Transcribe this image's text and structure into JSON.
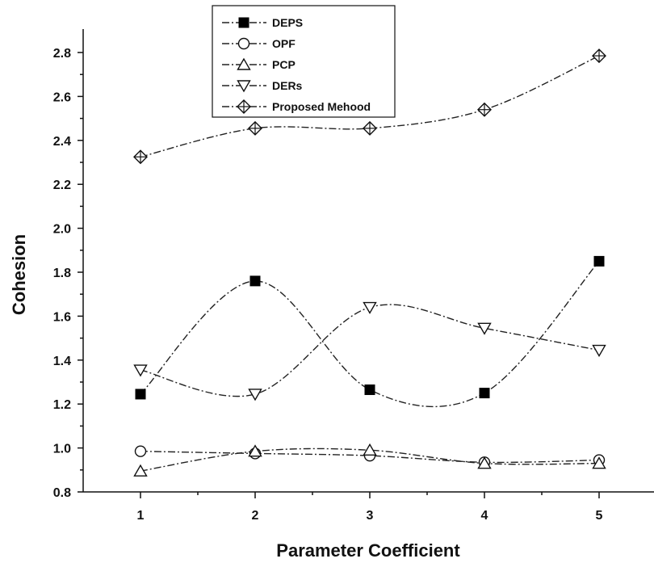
{
  "chart_data": {
    "type": "line",
    "title": "",
    "xlabel": "Parameter Coefficient",
    "ylabel": "Cohesion",
    "x": [
      1,
      2,
      3,
      4,
      5
    ],
    "xlim": [
      0.5,
      5.5
    ],
    "ylim": [
      0.8,
      2.9
    ],
    "x_ticks": [
      "1",
      "2",
      "3",
      "4",
      "5"
    ],
    "y_ticks": [
      "0.8",
      "1.0",
      "1.2",
      "1.4",
      "1.6",
      "1.8",
      "2.0",
      "2.2",
      "2.4",
      "2.6",
      "2.8"
    ],
    "grid": false,
    "legend_position": "top-center",
    "series": [
      {
        "name": "DEPS",
        "marker": "filled-square",
        "values": [
          1.245,
          1.76,
          1.265,
          1.25,
          1.85
        ]
      },
      {
        "name": "OPF",
        "marker": "circle",
        "values": [
          0.985,
          0.975,
          0.965,
          0.935,
          0.945
        ]
      },
      {
        "name": "PCP",
        "marker": "triangle-up",
        "values": [
          0.895,
          0.985,
          0.99,
          0.93,
          0.93
        ]
      },
      {
        "name": "DERs",
        "marker": "triangle-down",
        "values": [
          1.355,
          1.245,
          1.64,
          1.545,
          1.445
        ]
      },
      {
        "name": "Proposed Mehood",
        "marker": "crossed-diamond",
        "values": [
          2.325,
          2.455,
          2.455,
          2.54,
          2.785
        ]
      }
    ]
  }
}
